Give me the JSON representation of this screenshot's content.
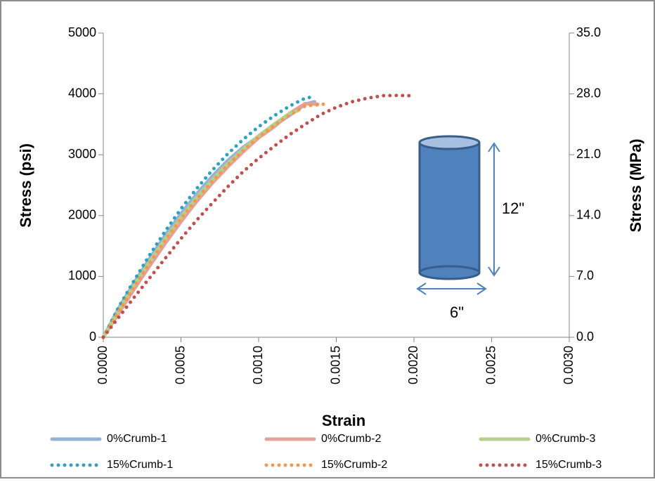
{
  "chart_data": {
    "type": "line",
    "xlabel": "Strain",
    "ylabel": "Stress (psi)",
    "y2label": "Stress (MPa)",
    "xlim": [
      0,
      0.003
    ],
    "xticks": [
      {
        "value": 0,
        "label": "0.0000"
      },
      {
        "value": 0.0005,
        "label": "0.0005"
      },
      {
        "value": 0.001,
        "label": "0.0010"
      },
      {
        "value": 0.0015,
        "label": "0.0015"
      },
      {
        "value": 0.002,
        "label": "0.0020"
      },
      {
        "value": 0.0025,
        "label": "0.0025"
      },
      {
        "value": 0.003,
        "label": "0.0030"
      }
    ],
    "ylim": [
      0,
      5000
    ],
    "yticks": [
      0,
      1000,
      2000,
      3000,
      4000,
      5000
    ],
    "y2lim": [
      0,
      35
    ],
    "y2ticks": [
      {
        "value": 0,
        "label": "0.0"
      },
      {
        "value": 7,
        "label": "7.0"
      },
      {
        "value": 14,
        "label": "14.0"
      },
      {
        "value": 21,
        "label": "21.0"
      },
      {
        "value": 28,
        "label": "28.0"
      },
      {
        "value": 35,
        "label": "35.0"
      }
    ],
    "annotations": [
      "12\"",
      "6\""
    ],
    "series": [
      {
        "name": "0%Crumb-1",
        "color": "#95b3d7",
        "style": "solid",
        "x": [
          0,
          0.0001,
          0.0002,
          0.0003,
          0.0004,
          0.0005,
          0.0006,
          0.0007,
          0.0008,
          0.0009,
          0.001,
          0.0011,
          0.0012,
          0.0013,
          0.00136
        ],
        "values": [
          0,
          480,
          900,
          1300,
          1680,
          2030,
          2350,
          2640,
          2900,
          3120,
          3300,
          3480,
          3650,
          3830,
          3870
        ]
      },
      {
        "name": "0%Crumb-2",
        "color": "#e6a09c",
        "style": "solid",
        "x": [
          0,
          0.0001,
          0.0002,
          0.0003,
          0.0004,
          0.0005,
          0.0006,
          0.0007,
          0.0008,
          0.0009,
          0.001,
          0.0011,
          0.0012,
          0.0013,
          0.00138
        ],
        "values": [
          0,
          400,
          800,
          1180,
          1550,
          1900,
          2230,
          2530,
          2800,
          3050,
          3280,
          3460,
          3680,
          3840,
          3830
        ]
      },
      {
        "name": "0%Crumb-3",
        "color": "#b5cf8e",
        "style": "solid",
        "x": [
          0,
          0.0001,
          0.0002,
          0.0003,
          0.0004,
          0.0005,
          0.0006,
          0.0007,
          0.0008,
          0.0009,
          0.001,
          0.0011,
          0.0012,
          0.00125
        ],
        "values": [
          0,
          450,
          860,
          1250,
          1620,
          1970,
          2290,
          2580,
          2850,
          3090,
          3310,
          3500,
          3680,
          3720
        ]
      },
      {
        "name": "15%Crumb-1",
        "color": "#31a0c0",
        "style": "dotted",
        "x": [
          0,
          0.0001,
          0.0002,
          0.0003,
          0.0004,
          0.0005,
          0.0006,
          0.0007,
          0.0008,
          0.0009,
          0.001,
          0.0011,
          0.0012,
          0.0013,
          0.00135
        ],
        "values": [
          0,
          500,
          940,
          1360,
          1750,
          2110,
          2440,
          2740,
          3010,
          3250,
          3460,
          3640,
          3800,
          3930,
          3950
        ]
      },
      {
        "name": "15%Crumb-2",
        "color": "#f79646",
        "style": "dotted",
        "x": [
          0,
          0.0001,
          0.0002,
          0.0003,
          0.0004,
          0.0005,
          0.0006,
          0.0007,
          0.0008,
          0.0009,
          0.001,
          0.0011,
          0.0012,
          0.0013,
          0.00142
        ],
        "values": [
          0,
          430,
          840,
          1230,
          1600,
          1950,
          2270,
          2560,
          2830,
          3070,
          3290,
          3480,
          3650,
          3800,
          3830
        ]
      },
      {
        "name": "15%Crumb-3",
        "color": "#c0504d",
        "style": "dotted",
        "x": [
          0,
          0.0001,
          0.0002,
          0.0003,
          0.0004,
          0.0005,
          0.0006,
          0.0007,
          0.0008,
          0.0009,
          0.001,
          0.0011,
          0.0012,
          0.0013,
          0.0014,
          0.0015,
          0.0016,
          0.0017,
          0.0018,
          0.0019,
          0.00197
        ],
        "values": [
          0,
          330,
          660,
          980,
          1300,
          1620,
          1920,
          2200,
          2470,
          2720,
          2940,
          3140,
          3330,
          3500,
          3660,
          3780,
          3870,
          3930,
          3970,
          3975,
          3970
        ]
      }
    ]
  }
}
